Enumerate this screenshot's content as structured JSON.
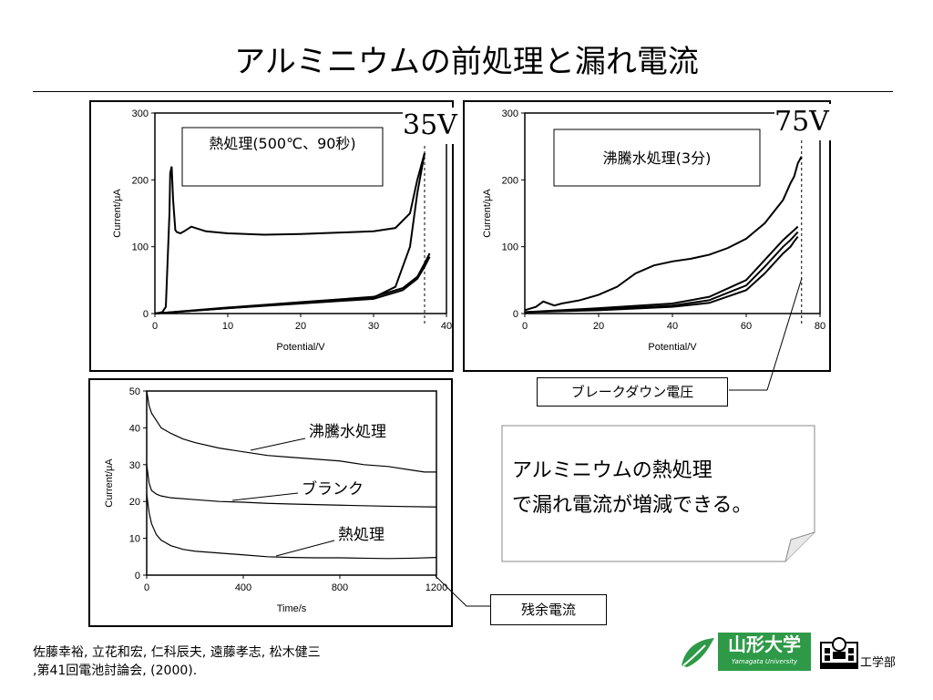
{
  "slide": {
    "title": "アルミニウムの前処理と漏れ電流"
  },
  "chart_data": [
    {
      "type": "line",
      "xlabel": "Potential/V",
      "ylabel": "Current/μA",
      "xlim": [
        0,
        40
      ],
      "ylim": [
        0,
        300
      ],
      "x_ticks": [
        "0",
        "10",
        "20",
        "30",
        "40"
      ],
      "y_ticks": [
        "0",
        "100",
        "200",
        "300"
      ],
      "annotation": "熱処理(500℃、90秒)",
      "voltage_label": "35V",
      "series": [
        {
          "x": [
            0,
            1,
            1.5,
            2,
            2.1,
            2.3,
            2.5,
            2.8,
            3,
            3.5,
            4,
            5,
            7,
            10,
            15,
            20,
            25,
            30,
            33,
            35,
            36,
            37
          ],
          "y": [
            0,
            2,
            10,
            150,
            210,
            220,
            170,
            125,
            122,
            120,
            123,
            130,
            123,
            120,
            118,
            119,
            121,
            123,
            128,
            150,
            200,
            240
          ]
        },
        {
          "x": [
            0,
            10,
            20,
            30,
            33,
            35,
            36,
            37
          ],
          "y": [
            0,
            8,
            16,
            24,
            40,
            100,
            180,
            240
          ]
        },
        {
          "x": [
            0,
            10,
            20,
            30,
            34,
            36,
            37,
            37.7
          ],
          "y": [
            0,
            9,
            17,
            25,
            38,
            55,
            75,
            90
          ]
        },
        {
          "x": [
            0,
            10,
            20,
            30,
            34,
            36,
            37,
            37.7
          ],
          "y": [
            0,
            8,
            15,
            22,
            35,
            52,
            70,
            85
          ]
        }
      ],
      "breakdown_line_x": 37
    },
    {
      "type": "line",
      "xlabel": "Potential/V",
      "ylabel": "Current/μA",
      "xlim": [
        0,
        80
      ],
      "ylim": [
        0,
        300
      ],
      "x_ticks": [
        "0",
        "20",
        "40",
        "60",
        "80"
      ],
      "y_ticks": [
        "0",
        "100",
        "200",
        "300"
      ],
      "annotation": "沸騰水処理(3分)",
      "voltage_label": "75V",
      "series": [
        {
          "x": [
            0,
            3,
            5,
            8,
            10,
            15,
            20,
            25,
            30,
            35,
            40,
            45,
            50,
            55,
            60,
            65,
            70,
            72,
            73,
            74,
            75
          ],
          "y": [
            5,
            10,
            18,
            12,
            15,
            20,
            28,
            40,
            60,
            72,
            78,
            82,
            88,
            98,
            112,
            135,
            170,
            195,
            205,
            225,
            235
          ]
        },
        {
          "x": [
            0,
            20,
            40,
            50,
            60,
            65,
            70,
            72,
            73,
            74
          ],
          "y": [
            2,
            8,
            15,
            25,
            50,
            80,
            110,
            120,
            125,
            130
          ]
        },
        {
          "x": [
            0,
            20,
            40,
            50,
            60,
            65,
            70,
            72,
            73,
            74
          ],
          "y": [
            2,
            6,
            12,
            20,
            42,
            70,
            100,
            110,
            116,
            122
          ]
        },
        {
          "x": [
            0,
            20,
            40,
            50,
            60,
            65,
            70,
            72,
            73,
            74
          ],
          "y": [
            2,
            5,
            10,
            16,
            35,
            60,
            90,
            100,
            108,
            115
          ]
        }
      ],
      "breakdown_line_x": 75
    },
    {
      "type": "line",
      "xlabel": "Time/s",
      "ylabel": "Current/μA",
      "xlim": [
        0,
        1200
      ],
      "ylim": [
        0,
        50
      ],
      "x_ticks": [
        "0",
        "400",
        "800",
        "1200"
      ],
      "y_ticks": [
        "0",
        "10",
        "20",
        "30",
        "40",
        "50"
      ],
      "series": [
        {
          "name": "沸騰水処理",
          "x": [
            0,
            10,
            20,
            40,
            60,
            100,
            150,
            200,
            300,
            400,
            500,
            600,
            700,
            800,
            900,
            1000,
            1100,
            1150,
            1200
          ],
          "y": [
            50,
            46,
            44,
            42,
            40,
            38.5,
            37,
            36,
            34.5,
            33.5,
            32.5,
            32,
            31.5,
            31,
            30,
            29.5,
            28.5,
            28,
            28
          ]
        },
        {
          "name": "ブランク",
          "x": [
            0,
            10,
            20,
            40,
            60,
            100,
            200,
            300,
            400,
            500,
            600,
            800,
            1000,
            1200
          ],
          "y": [
            30,
            25,
            23,
            22,
            21.5,
            21,
            20.5,
            20,
            19.8,
            19.5,
            19.3,
            19,
            18.7,
            18.5
          ]
        },
        {
          "name": "熱処理",
          "x": [
            0,
            10,
            20,
            40,
            60,
            100,
            150,
            200,
            300,
            400,
            500,
            600,
            700,
            800,
            900,
            1000,
            1100,
            1200
          ],
          "y": [
            22,
            17,
            14,
            11,
            9.5,
            8,
            7,
            6.5,
            6,
            5.5,
            5,
            4.8,
            4.7,
            4.7,
            4.6,
            4.5,
            4.6,
            4.8
          ]
        }
      ]
    }
  ],
  "callouts": {
    "breakdown": "ブレークダウン電圧",
    "residual": "残余電流",
    "note_line1": "アルミニウムの熱処理",
    "note_line2": "で漏れ電流が増減できる。"
  },
  "citation": {
    "author_first": "佐藤幸裕",
    "rest_line1": ", 立花和宏, 仁科辰夫, 遠藤孝志,  松木健三",
    "line2": ",第41回電池討論会,  (2000)."
  },
  "footer": {
    "university": "山形大学",
    "university_en": "Yamagata University",
    "faculty": "工学部"
  },
  "colors": {
    "logo_green": "#2e9a48",
    "line": "#000000"
  }
}
